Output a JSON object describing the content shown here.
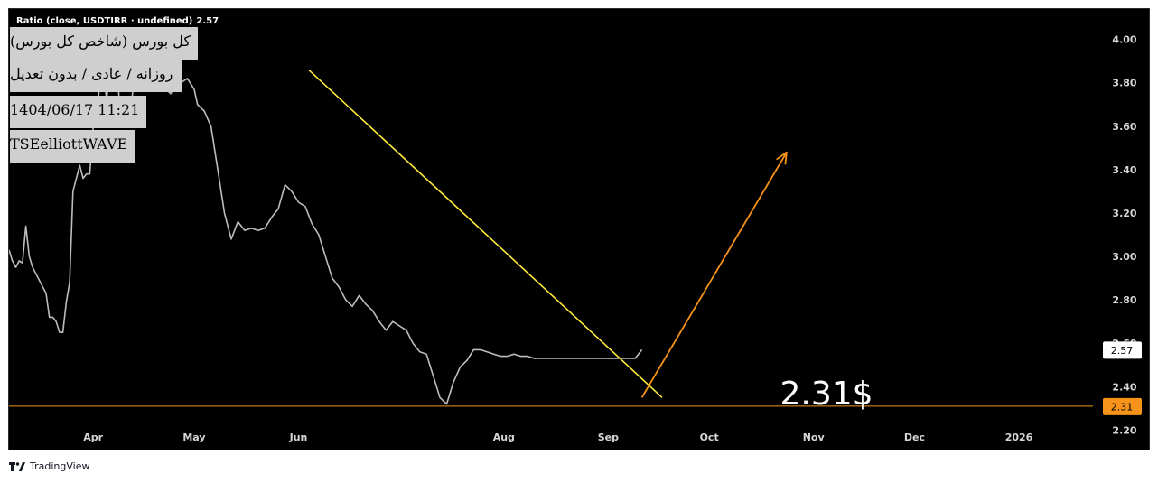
{
  "legend": {
    "label": "Ratio (close, USDTIRR · undefined)",
    "value": "2.57"
  },
  "info_boxes": [
    "کل بورس (شاخص کل بورس)",
    "روزانه / عادی / بدون تعدیل",
    "1404/06/17 11:21",
    "TSEelliottWAVE"
  ],
  "footer": {
    "brand": "TradingView"
  },
  "colors": {
    "background": "#000000",
    "price_line": "#bdbdbd",
    "trendline": "#ffeb3b",
    "arrow": "#f7931a",
    "support_line": "#f7931a",
    "last_price_badge": "#ffffff",
    "support_badge": "#f7931a"
  },
  "chart_data": {
    "type": "line",
    "series": [
      {
        "x": [
          "2025-03-07",
          "2025-03-08",
          "2025-03-09",
          "2025-03-10",
          "2025-03-11",
          "2025-03-12",
          "2025-03-13",
          "2025-03-14",
          "2025-03-15",
          "2025-03-17",
          "2025-03-18",
          "2025-03-19",
          "2025-03-20",
          "2025-03-21",
          "2025-03-22",
          "2025-03-23",
          "2025-03-24",
          "2025-03-25",
          "2025-03-26",
          "2025-03-28",
          "2025-03-29",
          "2025-03-30",
          "2025-03-31",
          "2025-04-01",
          "2025-04-02",
          "2025-04-03",
          "2025-04-04",
          "2025-04-05",
          "2025-04-06",
          "2025-04-08",
          "2025-04-09",
          "2025-04-10",
          "2025-04-12",
          "2025-04-13",
          "2025-04-15",
          "2025-04-16",
          "2025-04-18",
          "2025-04-19",
          "2025-04-20",
          "2025-04-22",
          "2025-04-24",
          "2025-04-26",
          "2025-04-27",
          "2025-04-29",
          "2025-05-01",
          "2025-05-02",
          "2025-05-04",
          "2025-05-06",
          "2025-05-08",
          "2025-05-10",
          "2025-05-12",
          "2025-05-14",
          "2025-05-16",
          "2025-05-18",
          "2025-05-20",
          "2025-05-22",
          "2025-05-24",
          "2025-05-26",
          "2025-05-28",
          "2025-05-30",
          "2025-06-01",
          "2025-06-03",
          "2025-06-05",
          "2025-06-07",
          "2025-06-09",
          "2025-06-11",
          "2025-06-13",
          "2025-06-15",
          "2025-06-17",
          "2025-06-19",
          "2025-06-21",
          "2025-06-23",
          "2025-06-25",
          "2025-06-27",
          "2025-06-29",
          "2025-07-01",
          "2025-07-03",
          "2025-07-05",
          "2025-07-07",
          "2025-07-09",
          "2025-07-11",
          "2025-07-13",
          "2025-07-15",
          "2025-07-17",
          "2025-07-19",
          "2025-07-21",
          "2025-07-23",
          "2025-07-25",
          "2025-07-27",
          "2025-07-29",
          "2025-07-31",
          "2025-08-02",
          "2025-08-04",
          "2025-08-06",
          "2025-08-08",
          "2025-08-10",
          "2025-08-12",
          "2025-08-14",
          "2025-08-16",
          "2025-08-18",
          "2025-08-20",
          "2025-08-22",
          "2025-08-24",
          "2025-08-26",
          "2025-08-28",
          "2025-08-30",
          "2025-09-01",
          "2025-09-03",
          "2025-09-05",
          "2025-09-07",
          "2025-09-09",
          "2025-09-11"
        ],
        "y": [
          3.03,
          2.98,
          2.95,
          2.98,
          2.97,
          3.14,
          3.0,
          2.95,
          2.92,
          2.86,
          2.83,
          2.72,
          2.72,
          2.7,
          2.65,
          2.65,
          2.79,
          2.88,
          3.3,
          3.42,
          3.36,
          3.38,
          3.38,
          3.6,
          3.65,
          3.8,
          3.86,
          3.72,
          3.88,
          3.9,
          3.65,
          3.6,
          3.65,
          3.8,
          3.78,
          3.83,
          3.9,
          3.94,
          3.93,
          3.78,
          3.75,
          3.8,
          3.8,
          3.82,
          3.77,
          3.7,
          3.67,
          3.6,
          3.4,
          3.2,
          3.08,
          3.16,
          3.12,
          3.13,
          3.12,
          3.13,
          3.18,
          3.22,
          3.33,
          3.3,
          3.25,
          3.23,
          3.15,
          3.1,
          3.0,
          2.9,
          2.86,
          2.8,
          2.77,
          2.82,
          2.78,
          2.75,
          2.7,
          2.66,
          2.7,
          2.68,
          2.66,
          2.6,
          2.56,
          2.55,
          2.45,
          2.35,
          2.32,
          2.42,
          2.49,
          2.52,
          2.57,
          2.57,
          2.56,
          2.55,
          2.54,
          2.54,
          2.55,
          2.54,
          2.54,
          2.53,
          2.53,
          2.53,
          2.53,
          2.53,
          2.53,
          2.53,
          2.53,
          2.53,
          2.53,
          2.53,
          2.53,
          2.53,
          2.53,
          2.53,
          2.53,
          2.57
        ]
      }
    ],
    "y_ticks": [
      "4.00",
      "3.80",
      "3.60",
      "3.40",
      "3.20",
      "3.00",
      "2.80",
      "2.60",
      "2.40",
      "2.20"
    ],
    "x_ticks": [
      "Apr",
      "May",
      "Jun",
      "Aug",
      "Sep",
      "Oct",
      "Nov",
      "Dec",
      "2026"
    ],
    "ylim": [
      2.11,
      4.14
    ],
    "last_value": "2.57",
    "support_value": "2.31",
    "annotation": "2.31$",
    "trendline": {
      "from": [
        "2025-06-04",
        3.86
      ],
      "to": [
        "2025-09-17",
        2.35
      ]
    },
    "arrow": {
      "from": [
        "2025-09-11",
        2.35
      ],
      "to": [
        "2025-10-24",
        3.48
      ]
    }
  }
}
